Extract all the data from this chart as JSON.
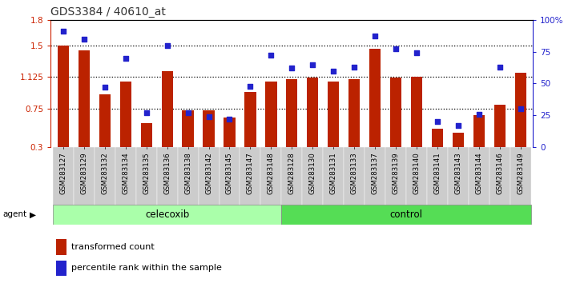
{
  "title": "GDS3384 / 40610_at",
  "samples": [
    "GSM283127",
    "GSM283129",
    "GSM283132",
    "GSM283134",
    "GSM283135",
    "GSM283136",
    "GSM283138",
    "GSM283142",
    "GSM283145",
    "GSM283147",
    "GSM283148",
    "GSM283128",
    "GSM283130",
    "GSM283131",
    "GSM283133",
    "GSM283137",
    "GSM283139",
    "GSM283140",
    "GSM283141",
    "GSM283143",
    "GSM283144",
    "GSM283146",
    "GSM283149"
  ],
  "red_values": [
    1.5,
    1.44,
    0.92,
    1.07,
    0.58,
    1.2,
    0.73,
    0.73,
    0.65,
    0.95,
    1.07,
    1.1,
    1.12,
    1.07,
    1.1,
    1.46,
    1.12,
    1.13,
    0.52,
    0.47,
    0.68,
    0.8,
    1.18
  ],
  "blue_values": [
    91,
    85,
    47,
    70,
    27,
    80,
    27,
    24,
    22,
    48,
    72,
    62,
    65,
    60,
    63,
    87,
    77,
    74,
    20,
    17,
    26,
    63,
    30
  ],
  "celecoxib_count": 11,
  "control_count": 12,
  "ylim_left": [
    0.3,
    1.8
  ],
  "ylim_right": [
    0,
    100
  ],
  "yticks_left": [
    0.3,
    0.75,
    1.125,
    1.5,
    1.8
  ],
  "ytick_labels_left": [
    "0.3",
    "0.75",
    "1.125",
    "1.5",
    "1.8"
  ],
  "yticks_right": [
    0,
    25,
    50,
    75,
    100
  ],
  "ytick_labels_right": [
    "0",
    "25",
    "50",
    "75",
    "100%"
  ],
  "hlines": [
    0.75,
    1.125,
    1.5
  ],
  "bar_color": "#bb2200",
  "dot_color": "#2222cc",
  "celecoxib_color": "#aaffaa",
  "control_color": "#55dd55",
  "agent_label": "agent",
  "group_labels": [
    "celecoxib",
    "control"
  ],
  "legend_bar": "transformed count",
  "legend_dot": "percentile rank within the sample",
  "title_color": "#333333",
  "left_axis_color": "#cc2200",
  "right_axis_color": "#2222cc",
  "xtick_bg": "#cccccc",
  "bar_width": 0.55
}
